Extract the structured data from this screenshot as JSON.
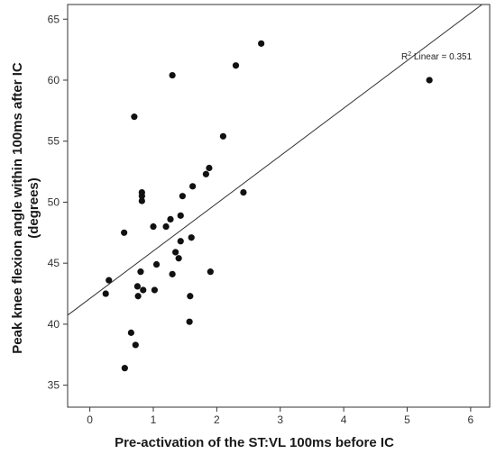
{
  "chart_data": {
    "type": "scatter",
    "title": "",
    "xlabel": "Pre-activation of the ST:VL 100ms before IC",
    "ylabel_line1": "Peak knee flexion angle within 100ms after IC",
    "ylabel_line2": "(degrees)",
    "xlim": [
      -0.35,
      6.3
    ],
    "ylim": [
      33.2,
      66.2
    ],
    "xticks": [
      0,
      1,
      2,
      3,
      4,
      5,
      6
    ],
    "yticks": [
      35,
      40,
      45,
      50,
      55,
      60,
      65
    ],
    "grid": false,
    "fit_line": {
      "slope": 3.9,
      "intercept": 42.1,
      "label_prefix": "R",
      "label_sup": "2",
      "label_suffix": " Linear = 0.351"
    },
    "points": [
      [
        0.25,
        42.5
      ],
      [
        0.3,
        43.6
      ],
      [
        0.54,
        47.5
      ],
      [
        0.55,
        36.4
      ],
      [
        0.65,
        39.3
      ],
      [
        0.7,
        57.0
      ],
      [
        0.72,
        38.3
      ],
      [
        0.75,
        43.1
      ],
      [
        0.76,
        42.3
      ],
      [
        0.8,
        44.3
      ],
      [
        0.82,
        50.5
      ],
      [
        0.82,
        50.8
      ],
      [
        0.82,
        50.1
      ],
      [
        0.84,
        42.8
      ],
      [
        1.0,
        48.0
      ],
      [
        1.02,
        42.8
      ],
      [
        1.05,
        44.9
      ],
      [
        1.2,
        48.0
      ],
      [
        1.27,
        48.6
      ],
      [
        1.3,
        60.4
      ],
      [
        1.3,
        44.1
      ],
      [
        1.35,
        45.9
      ],
      [
        1.4,
        45.4
      ],
      [
        1.43,
        46.8
      ],
      [
        1.43,
        48.9
      ],
      [
        1.46,
        50.5
      ],
      [
        1.57,
        40.2
      ],
      [
        1.58,
        42.3
      ],
      [
        1.6,
        47.1
      ],
      [
        1.62,
        51.3
      ],
      [
        1.83,
        52.3
      ],
      [
        1.88,
        52.8
      ],
      [
        1.9,
        44.3
      ],
      [
        2.1,
        55.4
      ],
      [
        2.3,
        61.2
      ],
      [
        2.42,
        50.8
      ],
      [
        2.7,
        63.0
      ],
      [
        5.35,
        60.0
      ]
    ]
  }
}
